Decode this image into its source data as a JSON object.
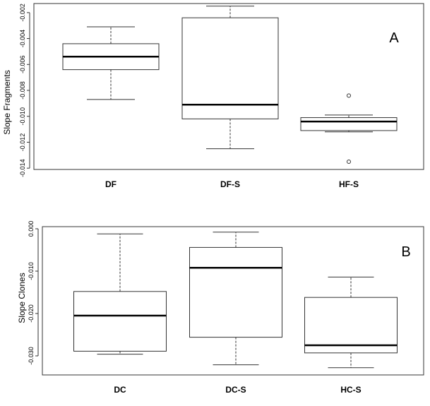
{
  "chart_data": [
    {
      "type": "boxplot",
      "panel_label": "A",
      "ylabel": "Slope Fragments",
      "ylim": [
        -0.0141,
        -0.0013
      ],
      "yticks": [
        -0.002,
        -0.004,
        -0.006,
        -0.008,
        -0.01,
        -0.012,
        -0.014
      ],
      "ytick_labels": [
        "-0.002",
        "-0.004",
        "-0.006",
        "-0.008",
        "-0.010",
        "-0.012",
        "-0.014"
      ],
      "categories": [
        "DF",
        "DF-S",
        "HF-S"
      ],
      "boxes": [
        {
          "whisker_low": -0.0087,
          "q1": -0.0064,
          "median": -0.0054,
          "q3": -0.0044,
          "whisker_high": -0.0031,
          "outliers": []
        },
        {
          "whisker_low": -0.0125,
          "q1": -0.0102,
          "median": -0.0091,
          "q3": -0.0024,
          "whisker_high": -0.0015,
          "outliers": []
        },
        {
          "whisker_low": -0.0112,
          "q1": -0.0111,
          "median": -0.0104,
          "q3": -0.0101,
          "whisker_high": -0.0099,
          "outliers": [
            -0.0084,
            -0.0135
          ]
        }
      ]
    },
    {
      "type": "boxplot",
      "panel_label": "B",
      "ylabel": "Slope Clones",
      "ylim": [
        -0.0345,
        0.0005
      ],
      "yticks": [
        0.0,
        -0.01,
        -0.02,
        -0.03
      ],
      "ytick_labels": [
        "0.000",
        "-0.010",
        "-0.020",
        "-0.030"
      ],
      "categories": [
        "DC",
        "DC-S",
        "HC-S"
      ],
      "boxes": [
        {
          "whisker_low": -0.0296,
          "q1": -0.0289,
          "median": -0.0205,
          "q3": -0.0148,
          "whisker_high": -0.0012,
          "outliers": []
        },
        {
          "whisker_low": -0.0321,
          "q1": -0.0256,
          "median": -0.0092,
          "q3": -0.0044,
          "whisker_high": -0.0008,
          "outliers": []
        },
        {
          "whisker_low": -0.0328,
          "q1": -0.0293,
          "median": -0.0275,
          "q3": -0.0162,
          "whisker_high": -0.0114,
          "outliers": []
        }
      ]
    }
  ]
}
